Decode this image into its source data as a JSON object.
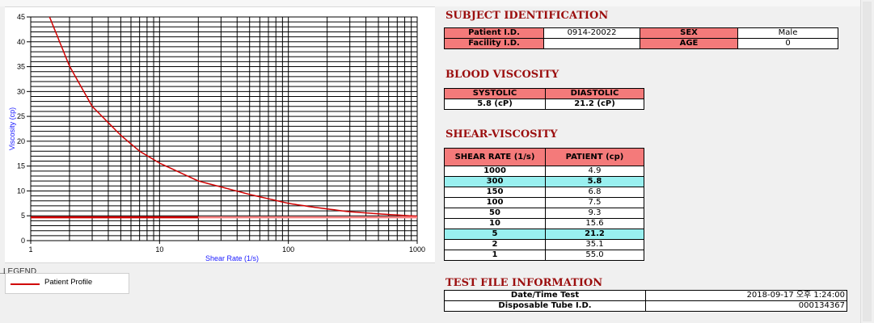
{
  "subject": {
    "title": "SUBJECT IDENTIFICATION",
    "patient_id_label": "Patient I.D.",
    "patient_id_value": "0914-20022",
    "sex_label": "SEX",
    "sex_value": "Male",
    "facility_id_label": "Facility I.D.",
    "facility_id_value": "",
    "age_label": "AGE",
    "age_value": "0"
  },
  "blood_viscosity": {
    "title": "BLOOD VISCOSITY",
    "systolic_label": "SYSTOLIC",
    "diastolic_label": "DIASTOLIC",
    "systolic_value": "5.8 (cP)",
    "diastolic_value": "21.2 (cP)"
  },
  "shear_viscosity": {
    "title": "SHEAR-VISCOSITY",
    "col_rate": "SHEAR RATE (1/s)",
    "col_patient": "PATIENT (cp)",
    "rows": [
      {
        "rate": "1000",
        "patient": "4.9"
      },
      {
        "rate": "300",
        "patient": "5.8"
      },
      {
        "rate": "150",
        "patient": "6.8"
      },
      {
        "rate": "100",
        "patient": "7.5"
      },
      {
        "rate": "50",
        "patient": "9.3"
      },
      {
        "rate": "10",
        "patient": "15.6"
      },
      {
        "rate": "5",
        "patient": "21.2"
      },
      {
        "rate": "2",
        "patient": "35.1"
      },
      {
        "rate": "1",
        "patient": "55.0"
      }
    ]
  },
  "test_file": {
    "title": "TEST FILE INFORMATION",
    "date_label": "Date/Time Test",
    "date_value": "2018-09-17  오후 1:24:00",
    "tube_label": "Disposable Tube I.D.",
    "tube_value": "000134367"
  },
  "legend": {
    "label": "LEGEND",
    "entry": "Patient Profile"
  },
  "chart_data": {
    "type": "line",
    "xlabel": "Shear Rate (1/s)",
    "ylabel": "Viscosity (cp)",
    "x_scale": "log",
    "xlim": [
      1,
      1000
    ],
    "ylim": [
      0,
      45
    ],
    "x_ticks": [
      "1",
      "10",
      "100",
      "1000"
    ],
    "y_ticks": [
      "0",
      "5",
      "10",
      "15",
      "20",
      "25",
      "30",
      "35",
      "40",
      "45"
    ],
    "grid": true,
    "series": [
      {
        "name": "Patient Profile",
        "color": "#d00000",
        "x": [
          1.4,
          2,
          3,
          5,
          7,
          10,
          20,
          50,
          100,
          150,
          300,
          500,
          1000
        ],
        "y": [
          45,
          35.1,
          27,
          21.2,
          18,
          15.6,
          12,
          9.3,
          7.5,
          6.8,
          5.8,
          5.4,
          4.9
        ]
      },
      {
        "color": "#d00000",
        "x": [
          1,
          20
        ],
        "y": [
          4.7,
          4.7
        ]
      },
      {
        "color": "#ff8080",
        "x": [
          20,
          1000
        ],
        "y": [
          4.7,
          4.7
        ]
      }
    ]
  }
}
